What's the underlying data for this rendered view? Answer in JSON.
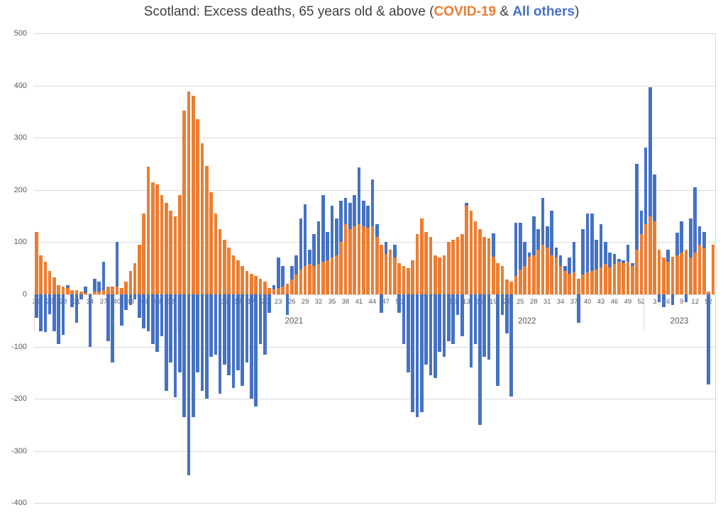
{
  "title": {
    "prefix": "Scotland: Excess deaths, 65 years old & above (",
    "covid_label": "COVID-19",
    "ampersand": " & ",
    "others_label": "All others",
    "suffix": ")"
  },
  "colors": {
    "covid": "#ED7D31",
    "others": "#4472C4",
    "gridline": "#D9D9D9",
    "axis_text": "#595959",
    "title_text": "#404040"
  },
  "chart_data": {
    "type": "bar",
    "stacked": true,
    "title": "Scotland: Excess deaths, 65 years old & above (COVID-19 & All others)",
    "xlabel": "",
    "ylabel": "",
    "ylim": [
      -400,
      500
    ],
    "y_ticks": [
      500,
      400,
      300,
      200,
      100,
      0,
      -100,
      -200,
      -300,
      -400
    ],
    "grid": true,
    "legend_position": "in-title",
    "x_tick_interval": 3,
    "x_tick_override_last": "52",
    "year_labels": [
      "2021",
      "2022",
      "2023"
    ],
    "series": [
      {
        "name": "COVID-19",
        "color": "#ED7D31"
      },
      {
        "name": "All others",
        "color": "#4472C4"
      }
    ],
    "points_format": [
      "year",
      "week",
      "covid19",
      "all_others"
    ],
    "points": [
      [
        2020,
        22,
        120,
        -45
      ],
      [
        2020,
        23,
        75,
        -70
      ],
      [
        2020,
        24,
        62,
        -72
      ],
      [
        2020,
        25,
        45,
        -38
      ],
      [
        2020,
        26,
        32,
        -70
      ],
      [
        2020,
        27,
        18,
        -95
      ],
      [
        2020,
        28,
        15,
        -78
      ],
      [
        2020,
        29,
        12,
        5
      ],
      [
        2020,
        30,
        8,
        -25
      ],
      [
        2020,
        31,
        8,
        -55
      ],
      [
        2020,
        32,
        5,
        -10
      ],
      [
        2020,
        33,
        3,
        12
      ],
      [
        2020,
        34,
        2,
        -100
      ],
      [
        2020,
        35,
        5,
        25
      ],
      [
        2020,
        36,
        5,
        20
      ],
      [
        2020,
        37,
        8,
        55
      ],
      [
        2020,
        38,
        15,
        -90
      ],
      [
        2020,
        39,
        15,
        -130
      ],
      [
        2020,
        40,
        15,
        85
      ],
      [
        2020,
        41,
        12,
        -60
      ],
      [
        2020,
        42,
        25,
        -30
      ],
      [
        2020,
        43,
        45,
        -20
      ],
      [
        2020,
        44,
        60,
        -10
      ],
      [
        2020,
        45,
        95,
        -45
      ],
      [
        2020,
        46,
        155,
        -65
      ],
      [
        2020,
        47,
        245,
        -70
      ],
      [
        2020,
        48,
        215,
        -95
      ],
      [
        2020,
        49,
        210,
        -110
      ],
      [
        2020,
        50,
        190,
        -80
      ],
      [
        2020,
        51,
        175,
        -185
      ],
      [
        2020,
        52,
        160,
        -130
      ],
      [
        2020,
        53,
        150,
        -197
      ],
      [
        2021,
        1,
        190,
        -150
      ],
      [
        2021,
        2,
        352,
        -235
      ],
      [
        2021,
        3,
        388,
        -347
      ],
      [
        2021,
        4,
        381,
        -235
      ],
      [
        2021,
        5,
        335,
        -150
      ],
      [
        2021,
        6,
        290,
        -185
      ],
      [
        2021,
        7,
        246,
        -200
      ],
      [
        2021,
        8,
        195,
        -120
      ],
      [
        2021,
        9,
        155,
        -115
      ],
      [
        2021,
        10,
        125,
        -190
      ],
      [
        2021,
        11,
        105,
        -135
      ],
      [
        2021,
        12,
        90,
        -155
      ],
      [
        2021,
        13,
        75,
        -180
      ],
      [
        2021,
        14,
        65,
        -145
      ],
      [
        2021,
        15,
        55,
        -175
      ],
      [
        2021,
        16,
        45,
        -130
      ],
      [
        2021,
        17,
        40,
        -200
      ],
      [
        2021,
        18,
        35,
        -215
      ],
      [
        2021,
        19,
        30,
        -95
      ],
      [
        2021,
        20,
        25,
        -115
      ],
      [
        2021,
        21,
        12,
        -35
      ],
      [
        2021,
        22,
        10,
        8
      ],
      [
        2021,
        23,
        12,
        58
      ],
      [
        2021,
        24,
        15,
        40
      ],
      [
        2021,
        25,
        20,
        -40
      ],
      [
        2021,
        26,
        28,
        27
      ],
      [
        2021,
        27,
        38,
        37
      ],
      [
        2021,
        28,
        48,
        97
      ],
      [
        2021,
        29,
        55,
        117
      ],
      [
        2021,
        30,
        58,
        27
      ],
      [
        2021,
        31,
        55,
        60
      ],
      [
        2021,
        32,
        58,
        82
      ],
      [
        2021,
        33,
        62,
        128
      ],
      [
        2021,
        34,
        65,
        55
      ],
      [
        2021,
        35,
        70,
        100
      ],
      [
        2021,
        36,
        75,
        70
      ],
      [
        2021,
        37,
        100,
        80
      ],
      [
        2021,
        38,
        135,
        50
      ],
      [
        2021,
        39,
        125,
        50
      ],
      [
        2021,
        40,
        130,
        60
      ],
      [
        2021,
        41,
        135,
        108
      ],
      [
        2021,
        42,
        130,
        50
      ],
      [
        2021,
        43,
        128,
        42
      ],
      [
        2021,
        44,
        130,
        90
      ],
      [
        2021,
        45,
        110,
        25
      ],
      [
        2021,
        46,
        95,
        -35
      ],
      [
        2021,
        47,
        78,
        22
      ],
      [
        2021,
        48,
        85,
        0
      ],
      [
        2021,
        49,
        70,
        25
      ],
      [
        2021,
        50,
        60,
        -35
      ],
      [
        2021,
        51,
        55,
        -95
      ],
      [
        2021,
        52,
        50,
        -150
      ],
      [
        2022,
        1,
        65,
        -225
      ],
      [
        2022,
        2,
        115,
        -235
      ],
      [
        2022,
        3,
        145,
        -225
      ],
      [
        2022,
        4,
        120,
        -135
      ],
      [
        2022,
        5,
        110,
        -155
      ],
      [
        2022,
        6,
        75,
        -160
      ],
      [
        2022,
        7,
        70,
        -110
      ],
      [
        2022,
        8,
        75,
        -120
      ],
      [
        2022,
        9,
        100,
        -90
      ],
      [
        2022,
        10,
        105,
        -95
      ],
      [
        2022,
        11,
        110,
        -40
      ],
      [
        2022,
        12,
        115,
        -80
      ],
      [
        2022,
        13,
        170,
        5
      ],
      [
        2022,
        14,
        160,
        -140
      ],
      [
        2022,
        15,
        140,
        -95
      ],
      [
        2022,
        16,
        125,
        -250
      ],
      [
        2022,
        17,
        110,
        -120
      ],
      [
        2022,
        18,
        108,
        -125
      ],
      [
        2022,
        19,
        72,
        45
      ],
      [
        2022,
        20,
        60,
        -175
      ],
      [
        2022,
        21,
        55,
        -40
      ],
      [
        2022,
        22,
        28,
        -75
      ],
      [
        2022,
        23,
        25,
        -195
      ],
      [
        2022,
        24,
        35,
        102
      ],
      [
        2022,
        25,
        48,
        89
      ],
      [
        2022,
        26,
        55,
        45
      ],
      [
        2022,
        27,
        72,
        8
      ],
      [
        2022,
        28,
        75,
        75
      ],
      [
        2022,
        29,
        85,
        40
      ],
      [
        2022,
        30,
        95,
        90
      ],
      [
        2022,
        31,
        90,
        40
      ],
      [
        2022,
        32,
        75,
        85
      ],
      [
        2022,
        33,
        70,
        20
      ],
      [
        2022,
        34,
        55,
        20
      ],
      [
        2022,
        35,
        45,
        10
      ],
      [
        2022,
        36,
        40,
        30
      ],
      [
        2022,
        37,
        42,
        58
      ],
      [
        2022,
        38,
        30,
        -55
      ],
      [
        2022,
        39,
        38,
        87
      ],
      [
        2022,
        40,
        42,
        113
      ],
      [
        2022,
        41,
        45,
        110
      ],
      [
        2022,
        42,
        48,
        57
      ],
      [
        2022,
        43,
        52,
        83
      ],
      [
        2022,
        44,
        58,
        42
      ],
      [
        2022,
        45,
        52,
        28
      ],
      [
        2022,
        46,
        58,
        20
      ],
      [
        2022,
        47,
        62,
        6
      ],
      [
        2022,
        48,
        60,
        5
      ],
      [
        2022,
        49,
        62,
        33
      ],
      [
        2022,
        50,
        55,
        5
      ],
      [
        2022,
        51,
        85,
        165
      ],
      [
        2022,
        52,
        115,
        45
      ],
      [
        2023,
        1,
        135,
        146
      ],
      [
        2023,
        2,
        150,
        247
      ],
      [
        2023,
        3,
        140,
        90
      ],
      [
        2023,
        4,
        85,
        -15
      ],
      [
        2023,
        5,
        70,
        -25
      ],
      [
        2023,
        6,
        62,
        23
      ],
      [
        2023,
        7,
        72,
        -20
      ],
      [
        2023,
        8,
        75,
        43
      ],
      [
        2023,
        9,
        80,
        60
      ],
      [
        2023,
        10,
        85,
        -15
      ],
      [
        2023,
        11,
        70,
        75
      ],
      [
        2023,
        12,
        80,
        125
      ],
      [
        2023,
        13,
        95,
        35
      ],
      [
        2023,
        14,
        88,
        32
      ],
      [
        2023,
        15,
        5,
        -172
      ],
      [
        2023,
        16,
        95,
        0
      ]
    ]
  }
}
